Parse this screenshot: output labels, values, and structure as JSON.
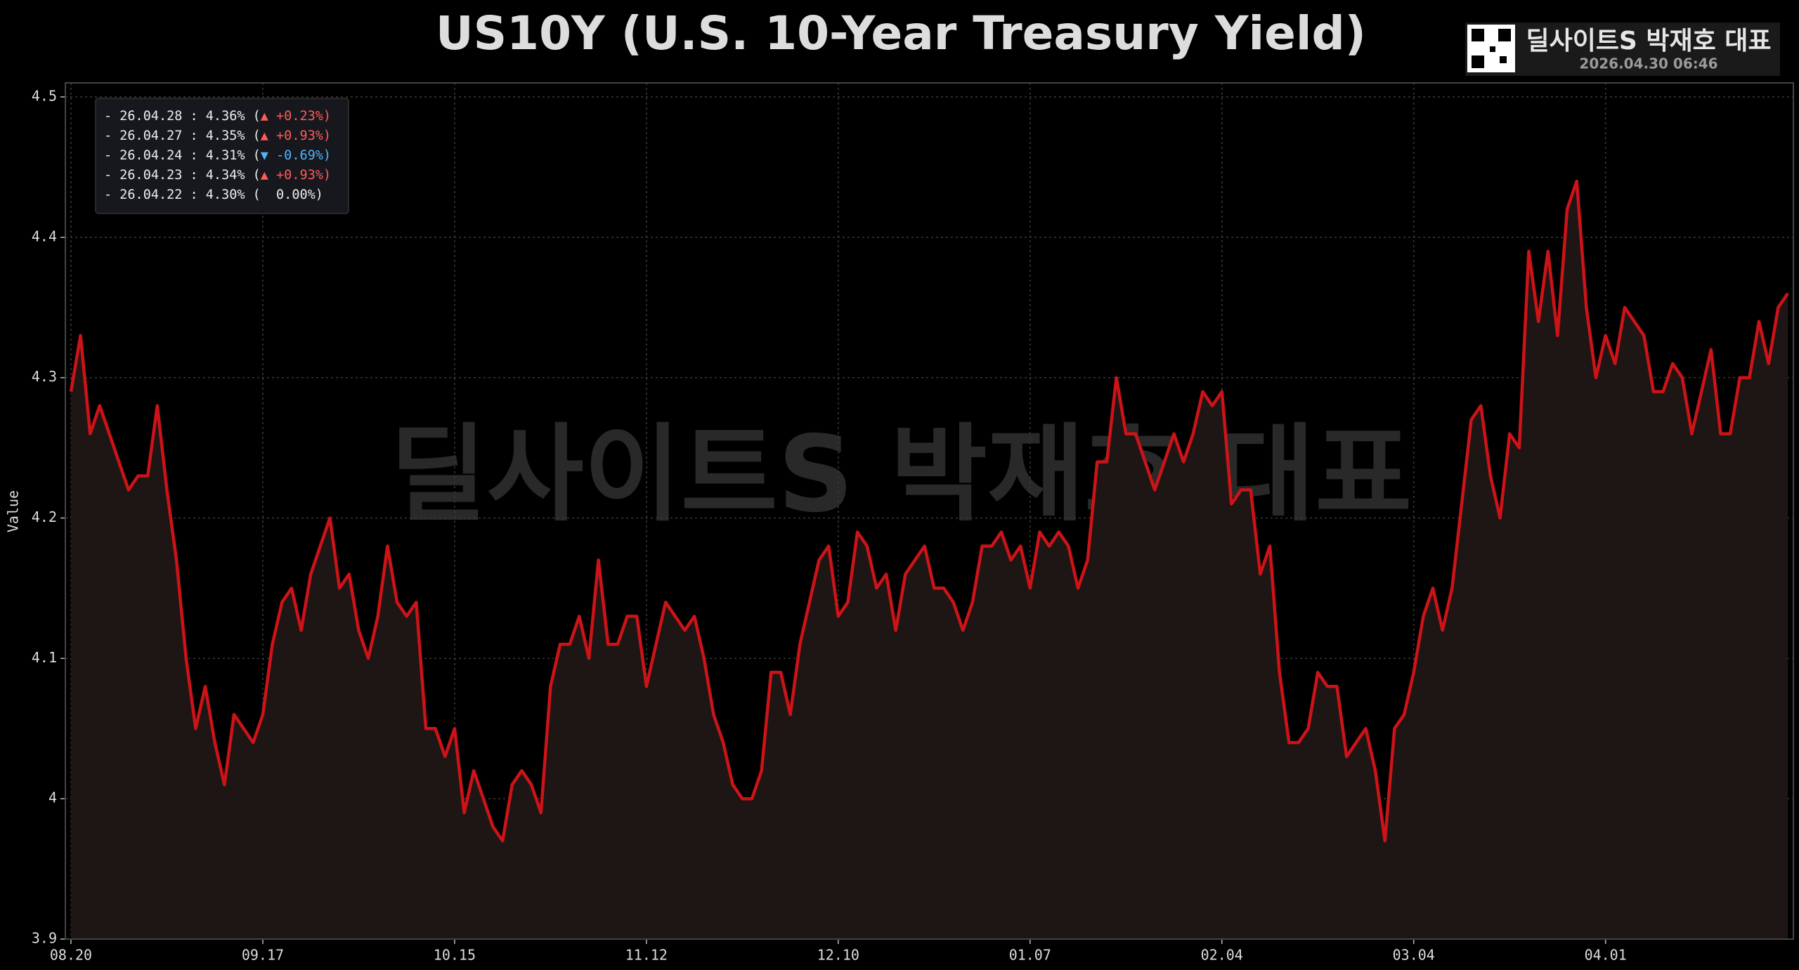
{
  "chart_data": {
    "type": "line",
    "title": "US10Y (U.S. 10-Year Treasury Yield)",
    "watermark": "딜사이트S 박재호 대표",
    "badge": {
      "name": "딜사이트S 박재호 대표",
      "timestamp": "2026.04.30 06:46"
    },
    "y_label": "Value",
    "categories": [
      "08.20",
      null,
      null,
      null,
      null,
      null,
      null,
      null,
      null,
      null,
      null,
      null,
      null,
      null,
      null,
      null,
      null,
      null,
      null,
      null,
      "09.17",
      null,
      null,
      null,
      null,
      null,
      null,
      null,
      null,
      null,
      null,
      null,
      null,
      null,
      null,
      null,
      null,
      null,
      null,
      null,
      "10.15",
      null,
      null,
      null,
      null,
      null,
      null,
      null,
      null,
      null,
      null,
      null,
      null,
      null,
      null,
      null,
      null,
      null,
      null,
      null,
      "11.12",
      null,
      null,
      null,
      null,
      null,
      null,
      null,
      null,
      null,
      null,
      null,
      null,
      null,
      null,
      null,
      null,
      null,
      null,
      null,
      "12.10",
      null,
      null,
      null,
      null,
      null,
      null,
      null,
      null,
      null,
      null,
      null,
      null,
      null,
      null,
      null,
      null,
      null,
      null,
      null,
      "01.07",
      null,
      null,
      null,
      null,
      null,
      null,
      null,
      null,
      null,
      null,
      null,
      null,
      null,
      null,
      null,
      null,
      null,
      null,
      null,
      "02.04",
      null,
      null,
      null,
      null,
      null,
      null,
      null,
      null,
      null,
      null,
      null,
      null,
      null,
      null,
      null,
      null,
      null,
      null,
      null,
      "03.04",
      null,
      null,
      null,
      null,
      null,
      null,
      null,
      null,
      null,
      null,
      null,
      null,
      null,
      null,
      null,
      null,
      null,
      null,
      null,
      "04.01",
      null,
      null,
      null,
      null,
      null,
      null,
      null,
      null,
      null,
      null,
      null,
      null,
      null,
      null,
      null,
      null,
      null,
      null,
      null
    ],
    "series": [
      {
        "name": "US10Y",
        "color": "#cc1418",
        "fill": "#1e1515",
        "values": [
          4.29,
          4.33,
          4.26,
          4.28,
          4.26,
          4.24,
          4.22,
          4.23,
          4.23,
          4.28,
          4.22,
          4.17,
          4.1,
          4.05,
          4.08,
          4.04,
          4.01,
          4.06,
          4.05,
          4.04,
          4.06,
          4.11,
          4.14,
          4.15,
          4.12,
          4.16,
          4.18,
          4.2,
          4.15,
          4.16,
          4.12,
          4.1,
          4.13,
          4.18,
          4.14,
          4.13,
          4.14,
          4.05,
          4.05,
          4.03,
          4.05,
          3.99,
          4.02,
          4.0,
          3.98,
          3.97,
          4.01,
          4.02,
          4.01,
          3.99,
          4.08,
          4.11,
          4.11,
          4.13,
          4.1,
          4.17,
          4.11,
          4.11,
          4.13,
          4.13,
          4.08,
          4.11,
          4.14,
          4.13,
          4.12,
          4.13,
          4.1,
          4.06,
          4.04,
          4.01,
          4.0,
          4.0,
          4.02,
          4.09,
          4.09,
          4.06,
          4.11,
          4.14,
          4.17,
          4.18,
          4.13,
          4.14,
          4.19,
          4.18,
          4.15,
          4.16,
          4.12,
          4.16,
          4.17,
          4.18,
          4.15,
          4.15,
          4.14,
          4.12,
          4.14,
          4.18,
          4.18,
          4.19,
          4.17,
          4.18,
          4.15,
          4.19,
          4.18,
          4.19,
          4.18,
          4.15,
          4.17,
          4.24,
          4.24,
          4.3,
          4.26,
          4.26,
          4.24,
          4.22,
          4.24,
          4.26,
          4.24,
          4.26,
          4.29,
          4.28,
          4.29,
          4.21,
          4.22,
          4.22,
          4.16,
          4.18,
          4.09,
          4.04,
          4.04,
          4.05,
          4.09,
          4.08,
          4.08,
          4.03,
          4.04,
          4.05,
          4.02,
          3.97,
          4.05,
          4.06,
          4.09,
          4.13,
          4.15,
          4.12,
          4.15,
          4.21,
          4.27,
          4.28,
          4.23,
          4.2,
          4.26,
          4.25,
          4.39,
          4.34,
          4.39,
          4.33,
          4.42,
          4.44,
          4.35,
          4.3,
          4.33,
          4.31,
          4.35,
          4.34,
          4.33,
          4.29,
          4.29,
          4.31,
          4.3,
          4.26,
          4.29,
          4.32,
          4.26,
          4.26,
          4.3,
          4.3,
          4.34,
          4.31,
          4.35,
          4.36
        ]
      }
    ],
    "ylim": [
      3.9,
      4.51
    ],
    "yticks": [
      3.9,
      4.0,
      4.1,
      4.2,
      4.3,
      4.4,
      4.5
    ],
    "grid": true,
    "legend_box": [
      {
        "text": "- 26.04.28 : 4.36% (",
        "change": "▲ +0.23%)",
        "color": "#ff5a5a"
      },
      {
        "text": "- 26.04.27 : 4.35% (",
        "change": "▲ +0.93%)",
        "color": "#ff5a5a"
      },
      {
        "text": "- 26.04.24 : 4.31% (",
        "change": "▼ -0.69%)",
        "color": "#4fb3ff"
      },
      {
        "text": "- 26.04.23 : 4.34% (",
        "change": "▲ +0.93%)",
        "color": "#ff5a5a"
      },
      {
        "text": "- 26.04.22 : 4.30% (",
        "change": "  0.00%)",
        "color": "#eeeeee"
      }
    ]
  }
}
